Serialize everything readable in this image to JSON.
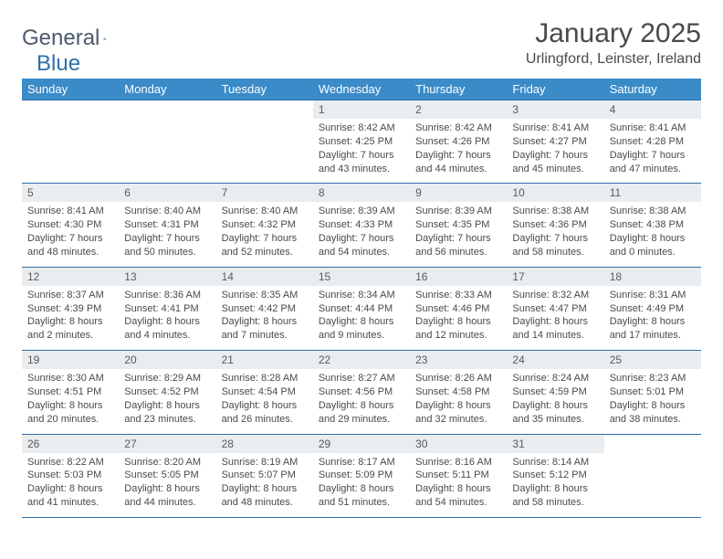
{
  "logo": {
    "word1": "General",
    "word2": "Blue"
  },
  "title": "January 2025",
  "location": "Urlingford, Leinster, Ireland",
  "day_headers": [
    "Sunday",
    "Monday",
    "Tuesday",
    "Wednesday",
    "Thursday",
    "Friday",
    "Saturday"
  ],
  "colors": {
    "header_bg": "#3b8bc9",
    "header_text": "#ffffff",
    "daynum_bg": "#e9edf0",
    "border": "#2f6fa8",
    "text": "#4a4a4a",
    "logo_gray": "#4a5a6a",
    "logo_blue": "#2f6fa8"
  },
  "weeks": [
    [
      {
        "n": "",
        "sunrise": "",
        "sunset": "",
        "daylight": ""
      },
      {
        "n": "",
        "sunrise": "",
        "sunset": "",
        "daylight": ""
      },
      {
        "n": "",
        "sunrise": "",
        "sunset": "",
        "daylight": ""
      },
      {
        "n": "1",
        "sunrise": "Sunrise: 8:42 AM",
        "sunset": "Sunset: 4:25 PM",
        "daylight": "Daylight: 7 hours and 43 minutes."
      },
      {
        "n": "2",
        "sunrise": "Sunrise: 8:42 AM",
        "sunset": "Sunset: 4:26 PM",
        "daylight": "Daylight: 7 hours and 44 minutes."
      },
      {
        "n": "3",
        "sunrise": "Sunrise: 8:41 AM",
        "sunset": "Sunset: 4:27 PM",
        "daylight": "Daylight: 7 hours and 45 minutes."
      },
      {
        "n": "4",
        "sunrise": "Sunrise: 8:41 AM",
        "sunset": "Sunset: 4:28 PM",
        "daylight": "Daylight: 7 hours and 47 minutes."
      }
    ],
    [
      {
        "n": "5",
        "sunrise": "Sunrise: 8:41 AM",
        "sunset": "Sunset: 4:30 PM",
        "daylight": "Daylight: 7 hours and 48 minutes."
      },
      {
        "n": "6",
        "sunrise": "Sunrise: 8:40 AM",
        "sunset": "Sunset: 4:31 PM",
        "daylight": "Daylight: 7 hours and 50 minutes."
      },
      {
        "n": "7",
        "sunrise": "Sunrise: 8:40 AM",
        "sunset": "Sunset: 4:32 PM",
        "daylight": "Daylight: 7 hours and 52 minutes."
      },
      {
        "n": "8",
        "sunrise": "Sunrise: 8:39 AM",
        "sunset": "Sunset: 4:33 PM",
        "daylight": "Daylight: 7 hours and 54 minutes."
      },
      {
        "n": "9",
        "sunrise": "Sunrise: 8:39 AM",
        "sunset": "Sunset: 4:35 PM",
        "daylight": "Daylight: 7 hours and 56 minutes."
      },
      {
        "n": "10",
        "sunrise": "Sunrise: 8:38 AM",
        "sunset": "Sunset: 4:36 PM",
        "daylight": "Daylight: 7 hours and 58 minutes."
      },
      {
        "n": "11",
        "sunrise": "Sunrise: 8:38 AM",
        "sunset": "Sunset: 4:38 PM",
        "daylight": "Daylight: 8 hours and 0 minutes."
      }
    ],
    [
      {
        "n": "12",
        "sunrise": "Sunrise: 8:37 AM",
        "sunset": "Sunset: 4:39 PM",
        "daylight": "Daylight: 8 hours and 2 minutes."
      },
      {
        "n": "13",
        "sunrise": "Sunrise: 8:36 AM",
        "sunset": "Sunset: 4:41 PM",
        "daylight": "Daylight: 8 hours and 4 minutes."
      },
      {
        "n": "14",
        "sunrise": "Sunrise: 8:35 AM",
        "sunset": "Sunset: 4:42 PM",
        "daylight": "Daylight: 8 hours and 7 minutes."
      },
      {
        "n": "15",
        "sunrise": "Sunrise: 8:34 AM",
        "sunset": "Sunset: 4:44 PM",
        "daylight": "Daylight: 8 hours and 9 minutes."
      },
      {
        "n": "16",
        "sunrise": "Sunrise: 8:33 AM",
        "sunset": "Sunset: 4:46 PM",
        "daylight": "Daylight: 8 hours and 12 minutes."
      },
      {
        "n": "17",
        "sunrise": "Sunrise: 8:32 AM",
        "sunset": "Sunset: 4:47 PM",
        "daylight": "Daylight: 8 hours and 14 minutes."
      },
      {
        "n": "18",
        "sunrise": "Sunrise: 8:31 AM",
        "sunset": "Sunset: 4:49 PM",
        "daylight": "Daylight: 8 hours and 17 minutes."
      }
    ],
    [
      {
        "n": "19",
        "sunrise": "Sunrise: 8:30 AM",
        "sunset": "Sunset: 4:51 PM",
        "daylight": "Daylight: 8 hours and 20 minutes."
      },
      {
        "n": "20",
        "sunrise": "Sunrise: 8:29 AM",
        "sunset": "Sunset: 4:52 PM",
        "daylight": "Daylight: 8 hours and 23 minutes."
      },
      {
        "n": "21",
        "sunrise": "Sunrise: 8:28 AM",
        "sunset": "Sunset: 4:54 PM",
        "daylight": "Daylight: 8 hours and 26 minutes."
      },
      {
        "n": "22",
        "sunrise": "Sunrise: 8:27 AM",
        "sunset": "Sunset: 4:56 PM",
        "daylight": "Daylight: 8 hours and 29 minutes."
      },
      {
        "n": "23",
        "sunrise": "Sunrise: 8:26 AM",
        "sunset": "Sunset: 4:58 PM",
        "daylight": "Daylight: 8 hours and 32 minutes."
      },
      {
        "n": "24",
        "sunrise": "Sunrise: 8:24 AM",
        "sunset": "Sunset: 4:59 PM",
        "daylight": "Daylight: 8 hours and 35 minutes."
      },
      {
        "n": "25",
        "sunrise": "Sunrise: 8:23 AM",
        "sunset": "Sunset: 5:01 PM",
        "daylight": "Daylight: 8 hours and 38 minutes."
      }
    ],
    [
      {
        "n": "26",
        "sunrise": "Sunrise: 8:22 AM",
        "sunset": "Sunset: 5:03 PM",
        "daylight": "Daylight: 8 hours and 41 minutes."
      },
      {
        "n": "27",
        "sunrise": "Sunrise: 8:20 AM",
        "sunset": "Sunset: 5:05 PM",
        "daylight": "Daylight: 8 hours and 44 minutes."
      },
      {
        "n": "28",
        "sunrise": "Sunrise: 8:19 AM",
        "sunset": "Sunset: 5:07 PM",
        "daylight": "Daylight: 8 hours and 48 minutes."
      },
      {
        "n": "29",
        "sunrise": "Sunrise: 8:17 AM",
        "sunset": "Sunset: 5:09 PM",
        "daylight": "Daylight: 8 hours and 51 minutes."
      },
      {
        "n": "30",
        "sunrise": "Sunrise: 8:16 AM",
        "sunset": "Sunset: 5:11 PM",
        "daylight": "Daylight: 8 hours and 54 minutes."
      },
      {
        "n": "31",
        "sunrise": "Sunrise: 8:14 AM",
        "sunset": "Sunset: 5:12 PM",
        "daylight": "Daylight: 8 hours and 58 minutes."
      },
      {
        "n": "",
        "sunrise": "",
        "sunset": "",
        "daylight": ""
      }
    ]
  ]
}
